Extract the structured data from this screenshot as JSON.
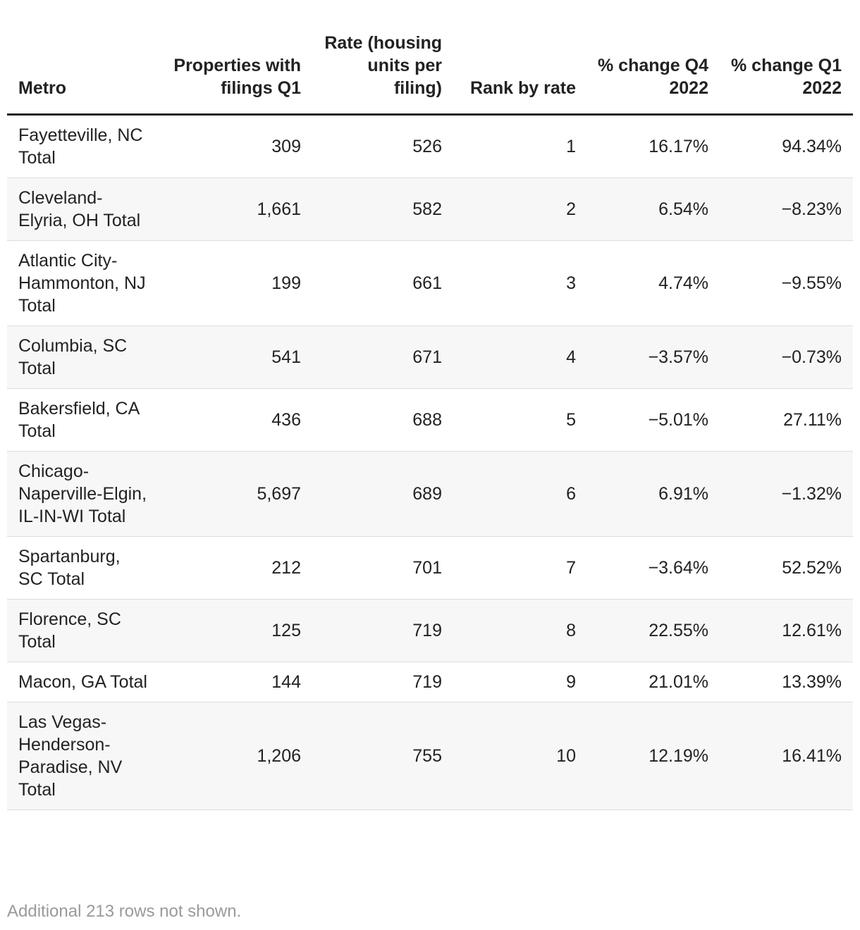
{
  "table": {
    "headers": [
      "Metro",
      "Properties with filings Q1",
      "Rate (housing units per filing)",
      "Rank by rate",
      "% change Q4 2022",
      "% change Q1 2022"
    ],
    "rows": [
      [
        "Fayetteville, NC Total",
        "309",
        "526",
        "1",
        "16.17%",
        "94.34%"
      ],
      [
        "Cleveland-Elyria, OH Total",
        "1,661",
        "582",
        "2",
        "6.54%",
        "−8.23%"
      ],
      [
        "Atlantic City-Hammonton, NJ Total",
        "199",
        "661",
        "3",
        "4.74%",
        "−9.55%"
      ],
      [
        "Columbia, SC Total",
        "541",
        "671",
        "4",
        "−3.57%",
        "−0.73%"
      ],
      [
        "Bakersfield, CA Total",
        "436",
        "688",
        "5",
        "−5.01%",
        "27.11%"
      ],
      [
        "Chicago-Naperville-Elgin, IL-IN-WI Total",
        "5,697",
        "689",
        "6",
        "6.91%",
        "−1.32%"
      ],
      [
        "Spartanburg, SC Total",
        "212",
        "701",
        "7",
        "−3.64%",
        "52.52%"
      ],
      [
        "Florence, SC Total",
        "125",
        "719",
        "8",
        "22.55%",
        "12.61%"
      ],
      [
        "Macon, GA Total",
        "144",
        "719",
        "9",
        "21.01%",
        "13.39%"
      ],
      [
        "Las Vegas-Henderson-Paradise, NV Total",
        "1,206",
        "755",
        "10",
        "12.19%",
        "16.41%"
      ]
    ]
  },
  "footer": {
    "note": "Additional 213 rows not shown."
  }
}
